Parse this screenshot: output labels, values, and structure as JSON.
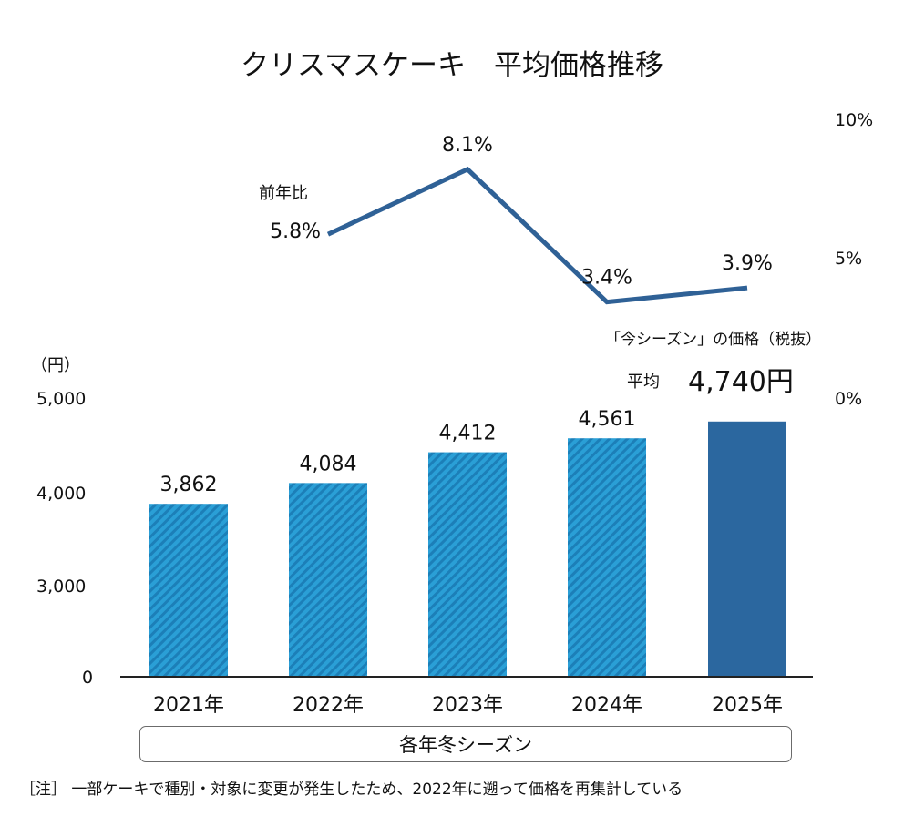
{
  "title": "クリスマスケーキ　平均価格推移",
  "chart_data": {
    "type": "bar+line",
    "title": "クリスマスケーキ　平均価格推移",
    "categories": [
      "2021年",
      "2022年",
      "2023年",
      "2024年",
      "2025年"
    ],
    "bar_series": {
      "values": [
        3862,
        4084,
        4412,
        4561,
        4740
      ],
      "labels": [
        "3,862",
        "4,084",
        "4,412",
        "4,561",
        ""
      ],
      "styles": [
        "hatched",
        "hatched",
        "hatched",
        "hatched",
        "solid"
      ],
      "unit_label": "（円）",
      "y_ticks": [
        "5,000",
        "4,000",
        "3,000",
        "0"
      ],
      "y_tick_values": [
        5000,
        4000,
        3000,
        0
      ],
      "axis_break": "0 to 3,000 compressed"
    },
    "line_series": {
      "label": "前年比",
      "categories": [
        "2022年",
        "2023年",
        "2024年",
        "2025年"
      ],
      "values": [
        5.8,
        8.1,
        3.4,
        3.9
      ],
      "labels": [
        "5.8%",
        "8.1%",
        "3.4%",
        "3.9%"
      ],
      "y_ticks": [
        "10%",
        "5%",
        "0%"
      ],
      "y_tick_values": [
        10,
        5,
        0
      ]
    },
    "current_season": {
      "header": "「今シーズン」の価格（税抜）",
      "avg_label": "平均",
      "value_text": "4,740円"
    },
    "x_group_label": "各年冬シーズン",
    "legend": "none",
    "grid": false
  },
  "colors": {
    "bar_hatch_light": "#2a9fd6",
    "bar_hatch_dark": "#1c7fb8",
    "bar_solid": "#2b679f",
    "line": "#2f6196",
    "axis": "#222222"
  },
  "note": "［注］ 一部ケーキで種別・対象に変更が発生したため、2022年に遡って価格を再集計している"
}
